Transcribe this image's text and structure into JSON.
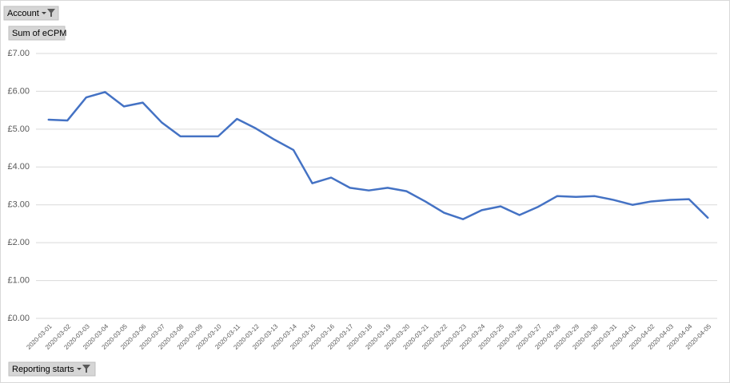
{
  "chart_data": {
    "type": "line",
    "field_buttons": {
      "filter": "Account",
      "values": "Sum of eCPM",
      "axis": "Reporting starts"
    },
    "categories": [
      "2020-03-01",
      "2020-03-02",
      "2020-03-03",
      "2020-03-04",
      "2020-03-05",
      "2020-03-06",
      "2020-03-07",
      "2020-03-08",
      "2020-03-09",
      "2020-03-10",
      "2020-03-11",
      "2020-03-12",
      "2020-03-13",
      "2020-03-14",
      "2020-03-15",
      "2020-03-16",
      "2020-03-17",
      "2020-03-18",
      "2020-03-19",
      "2020-03-20",
      "2020-03-21",
      "2020-03-22",
      "2020-03-23",
      "2020-03-24",
      "2020-03-25",
      "2020-03-26",
      "2020-03-27",
      "2020-03-28",
      "2020-03-29",
      "2020-03-30",
      "2020-03-31",
      "2020-04-01",
      "2020-04-02",
      "2020-04-03",
      "2020-04-04",
      "2020-04-05"
    ],
    "values": [
      5.25,
      5.23,
      5.84,
      5.98,
      5.6,
      5.7,
      5.18,
      4.81,
      4.81,
      4.81,
      5.27,
      5.02,
      4.72,
      4.45,
      3.57,
      3.72,
      3.45,
      3.38,
      3.45,
      3.36,
      3.09,
      2.79,
      2.62,
      2.86,
      2.96,
      2.73,
      2.95,
      3.23,
      3.21,
      3.23,
      3.13,
      3.0,
      3.09,
      3.13,
      3.15,
      2.66
    ],
    "color": "#4472c4",
    "ylim": [
      0,
      7
    ],
    "yticks": [
      {
        "value": 0,
        "label": "£0.00"
      },
      {
        "value": 1,
        "label": "£1.00"
      },
      {
        "value": 2,
        "label": "£2.00"
      },
      {
        "value": 3,
        "label": "£3.00"
      },
      {
        "value": 4,
        "label": "£4.00"
      },
      {
        "value": 5,
        "label": "£5.00"
      },
      {
        "value": 6,
        "label": "£6.00"
      },
      {
        "value": 7,
        "label": "£7.00"
      }
    ],
    "grid": true
  }
}
